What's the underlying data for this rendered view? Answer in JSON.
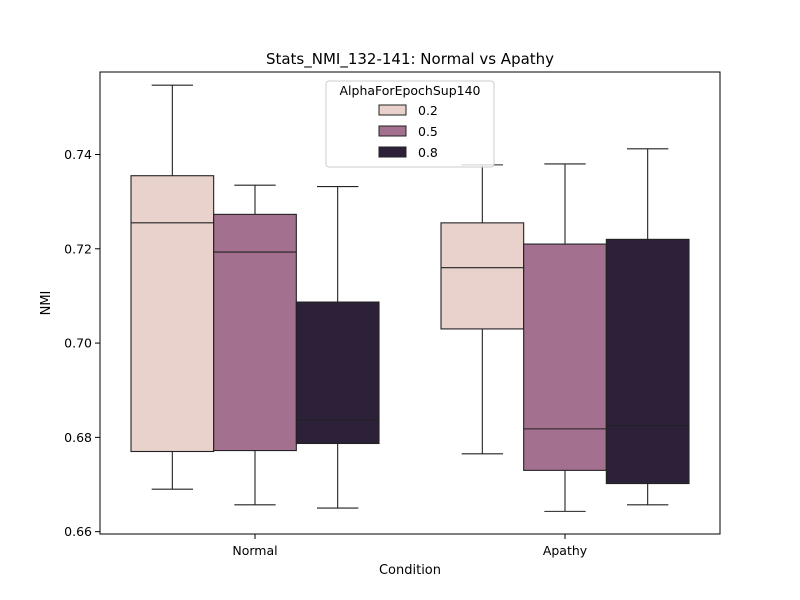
{
  "chart_data": {
    "type": "box",
    "title": "Stats_NMI_132-141: Normal vs Apathy",
    "xlabel": "Condition",
    "ylabel": "NMI",
    "categories": [
      "Normal",
      "Apathy"
    ],
    "ylim": [
      0.6595,
      0.7575
    ],
    "yticks": [
      0.66,
      0.68,
      0.7,
      0.72,
      0.74
    ],
    "ytick_labels": [
      "0.66",
      "0.68",
      "0.70",
      "0.72",
      "0.74"
    ],
    "grid": false,
    "legend": {
      "title": "AlphaForEpochSup140",
      "placement": "upper-center"
    },
    "series": [
      {
        "name": "0.2",
        "color": "#e9d1cc",
        "boxes": [
          {
            "whisker_low": 0.669,
            "q1": 0.677,
            "median": 0.7255,
            "q3": 0.7355,
            "whisker_high": 0.7547
          },
          {
            "whisker_low": 0.6765,
            "q1": 0.703,
            "median": 0.716,
            "q3": 0.7255,
            "whisker_high": 0.7378
          }
        ]
      },
      {
        "name": "0.5",
        "color": "#a3708f",
        "boxes": [
          {
            "whisker_low": 0.6657,
            "q1": 0.6772,
            "median": 0.7193,
            "q3": 0.7273,
            "whisker_high": 0.7335
          },
          {
            "whisker_low": 0.6643,
            "q1": 0.673,
            "median": 0.6818,
            "q3": 0.721,
            "whisker_high": 0.738
          }
        ]
      },
      {
        "name": "0.8",
        "color": "#2d2139",
        "boxes": [
          {
            "whisker_low": 0.665,
            "q1": 0.6787,
            "median": 0.6837,
            "q3": 0.7087,
            "whisker_high": 0.7332
          },
          {
            "whisker_low": 0.6657,
            "q1": 0.6702,
            "median": 0.6825,
            "q3": 0.722,
            "whisker_high": 0.7412
          }
        ]
      }
    ]
  }
}
